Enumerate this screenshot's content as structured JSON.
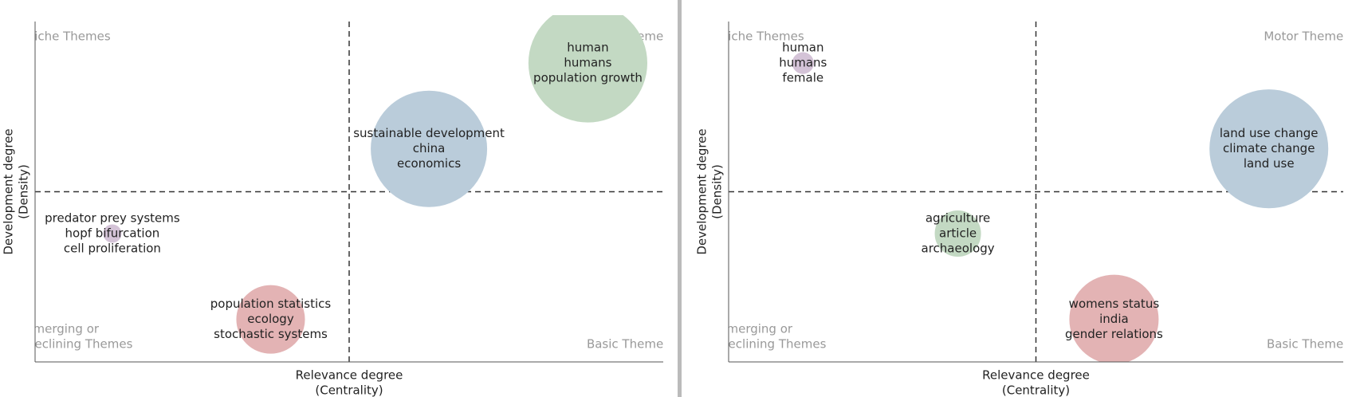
{
  "chart_data": [
    {
      "type": "bubble",
      "xlabel": [
        "Relevance degree",
        "(Centrality)"
      ],
      "ylabel": [
        "Development degree",
        "(Density)"
      ],
      "xlim": [
        0,
        100
      ],
      "ylim": [
        0,
        100
      ],
      "xline": 50,
      "yline": 50,
      "quadrant_labels": [
        {
          "corner": "top-left",
          "lines": [
            "Niche Themes"
          ]
        },
        {
          "corner": "top-right",
          "lines": [
            "Motor Themes"
          ]
        },
        {
          "corner": "bottom-left",
          "lines": [
            "Emerging or",
            "Declining Themes"
          ]
        },
        {
          "corner": "bottom-right",
          "lines": [
            "Basic Themes"
          ]
        }
      ],
      "points": [
        {
          "labels": [
            "human",
            "humans",
            "population growth"
          ],
          "x": 88.0,
          "y": 87.8,
          "size": 9.4,
          "color": "#d4ecd4"
        },
        {
          "labels": [
            "sustainable development",
            "china",
            "economics"
          ],
          "x": 62.7,
          "y": 62.6,
          "size": 9.2,
          "color": "#cadeed"
        },
        {
          "labels": [
            "predator prey systems",
            "hopf bifurcation",
            "cell proliferation"
          ],
          "x": 12.3,
          "y": 37.7,
          "size": 1.4,
          "color": "#e6d4ea"
        },
        {
          "labels": [
            "population statistics",
            "ecology",
            "stochastic systems"
          ],
          "x": 37.5,
          "y": 12.5,
          "size": 5.4,
          "color": "#f7c3c4"
        }
      ]
    },
    {
      "type": "bubble",
      "xlabel": [
        "Relevance degree",
        "(Centrality)"
      ],
      "ylabel": [
        "Development degree",
        "(Density)"
      ],
      "xlim": [
        0,
        100
      ],
      "ylim": [
        0,
        100
      ],
      "xline": 50,
      "yline": 50,
      "quadrant_labels": [
        {
          "corner": "top-left",
          "lines": [
            "Niche Themes"
          ]
        },
        {
          "corner": "top-right",
          "lines": [
            "Motor Themes"
          ]
        },
        {
          "corner": "bottom-left",
          "lines": [
            "Emerging or",
            "Declining Themes"
          ]
        },
        {
          "corner": "bottom-right",
          "lines": [
            "Basic Themes"
          ]
        }
      ],
      "points": [
        {
          "labels": [
            "human",
            "humans",
            "female"
          ],
          "x": 12.1,
          "y": 87.8,
          "size": 1.7,
          "color": "#e6d4ea"
        },
        {
          "labels": [
            "land use change",
            "climate change",
            "land use"
          ],
          "x": 87.9,
          "y": 62.6,
          "size": 9.6,
          "color": "#cadeed"
        },
        {
          "labels": [
            "agriculture",
            "article",
            "archaeology"
          ],
          "x": 37.3,
          "y": 37.7,
          "size": 3.7,
          "color": "#d4ecd4"
        },
        {
          "labels": [
            "womens status",
            "india",
            "gender relations"
          ],
          "x": 62.7,
          "y": 12.5,
          "size": 7.2,
          "color": "#f7c3c4"
        }
      ]
    }
  ]
}
